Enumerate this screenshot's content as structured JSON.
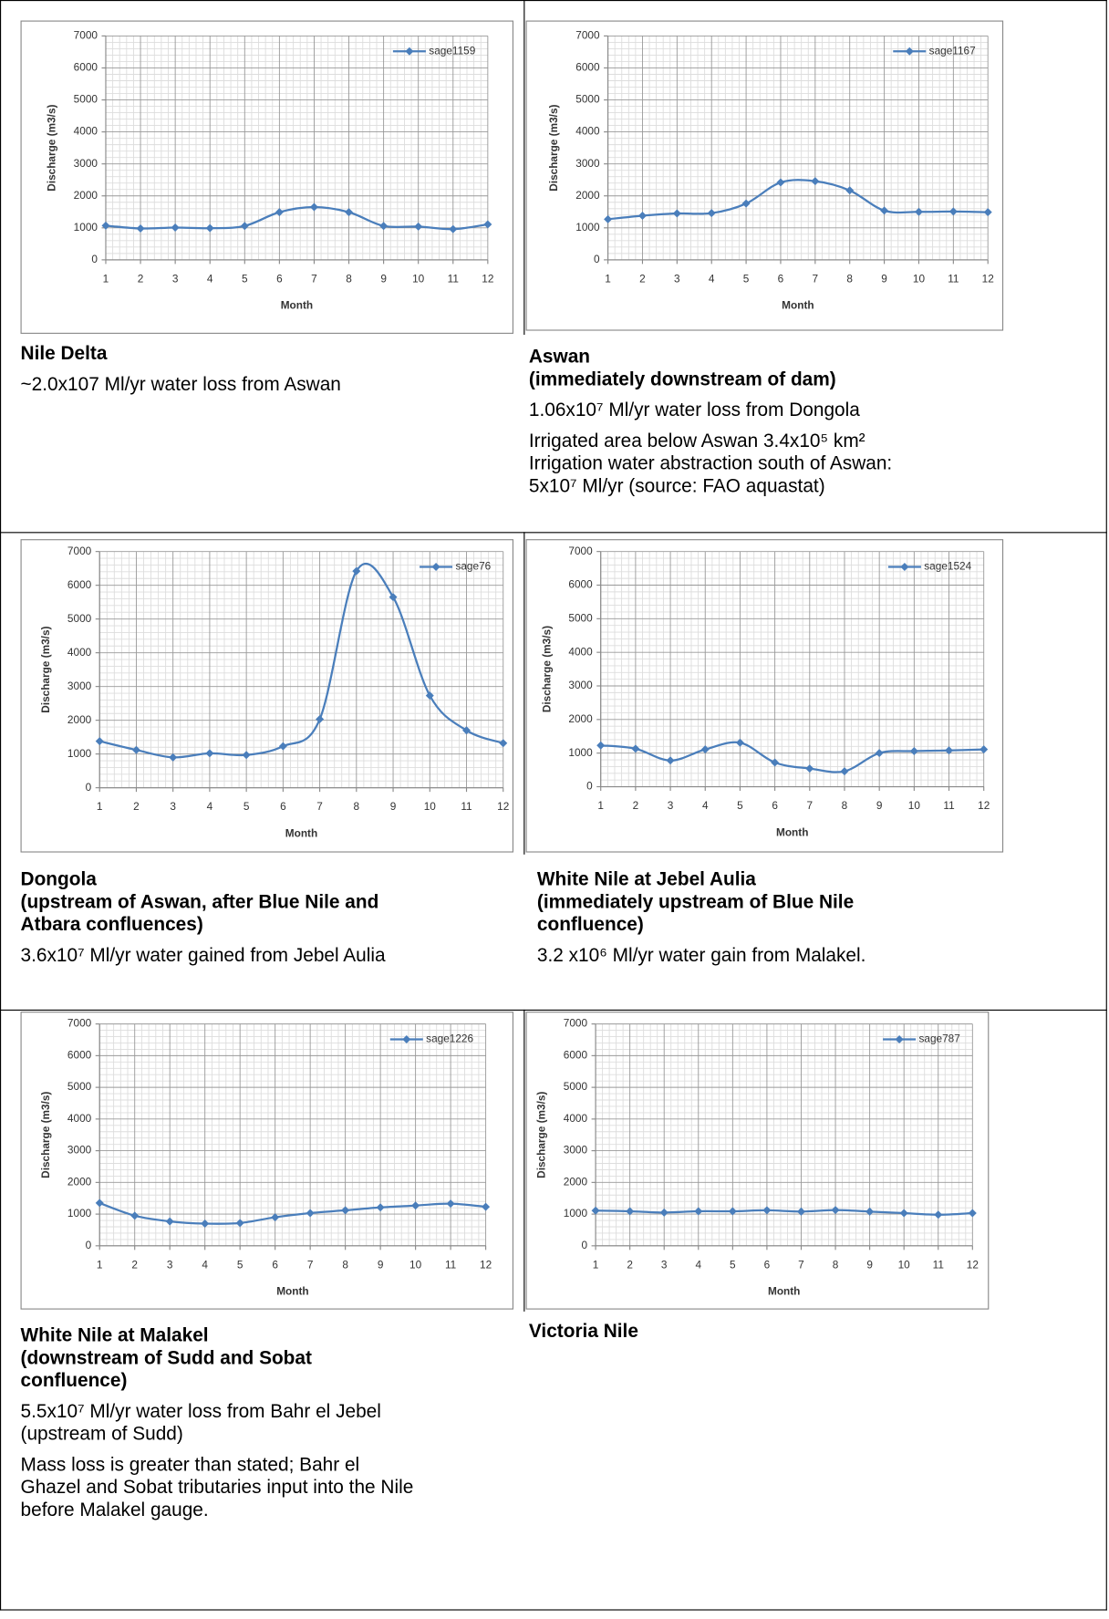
{
  "chart_data": [
    {
      "type": "line",
      "ylabel": "Discharge (m3/s)",
      "xlabel": "Month",
      "x": [
        1,
        2,
        3,
        4,
        5,
        6,
        7,
        8,
        9,
        10,
        11,
        12
      ],
      "xlim": [
        1,
        12
      ],
      "xticks": [
        1,
        2,
        3,
        4,
        5,
        6,
        7,
        8,
        9,
        10,
        11,
        12
      ],
      "ylim": [
        0,
        7000
      ],
      "yticks": [
        0,
        1000,
        2000,
        3000,
        4000,
        5000,
        6000,
        7000
      ],
      "grid": true,
      "minor_grid": true,
      "legend": "upper right",
      "smooth": true,
      "series": [
        {
          "name": "sage1159",
          "color": "#4a7ebb",
          "values": [
            1070,
            980,
            1010,
            990,
            1060,
            1490,
            1650,
            1490,
            1060,
            1040,
            960,
            1110
          ]
        }
      ]
    },
    {
      "type": "line",
      "ylabel": "Discharge (m3/s)",
      "xlabel": "Month",
      "x": [
        1,
        2,
        3,
        4,
        5,
        6,
        7,
        8,
        9,
        10,
        11,
        12
      ],
      "xlim": [
        1,
        12
      ],
      "xticks": [
        1,
        2,
        3,
        4,
        5,
        6,
        7,
        8,
        9,
        10,
        11,
        12
      ],
      "ylim": [
        0,
        7000
      ],
      "yticks": [
        0,
        1000,
        2000,
        3000,
        4000,
        5000,
        6000,
        7000
      ],
      "grid": true,
      "minor_grid": true,
      "legend": "upper right",
      "smooth": true,
      "series": [
        {
          "name": "sage1167",
          "color": "#4a7ebb",
          "values": [
            1270,
            1380,
            1450,
            1460,
            1760,
            2420,
            2460,
            2170,
            1540,
            1500,
            1510,
            1490
          ]
        }
      ]
    },
    {
      "type": "line",
      "ylabel": "Discharge (m3/s)",
      "xlabel": "Month",
      "x": [
        1,
        2,
        3,
        4,
        5,
        6,
        7,
        8,
        9,
        10,
        11,
        12
      ],
      "xlim": [
        1,
        12
      ],
      "xticks": [
        1,
        2,
        3,
        4,
        5,
        6,
        7,
        8,
        9,
        10,
        11,
        12
      ],
      "ylim": [
        0,
        7000
      ],
      "yticks": [
        0,
        1000,
        2000,
        3000,
        4000,
        5000,
        6000,
        7000
      ],
      "grid": true,
      "minor_grid": true,
      "legend": "upper right",
      "smooth": true,
      "series": [
        {
          "name": "sage76",
          "color": "#4a7ebb",
          "values": [
            1380,
            1120,
            900,
            1020,
            970,
            1230,
            2030,
            6420,
            5650,
            2730,
            1700,
            1320
          ]
        }
      ]
    },
    {
      "type": "line",
      "ylabel": "Discharge (m3/s)",
      "xlabel": "Month",
      "x": [
        1,
        2,
        3,
        4,
        5,
        6,
        7,
        8,
        9,
        10,
        11,
        12
      ],
      "xlim": [
        1,
        12
      ],
      "xticks": [
        1,
        2,
        3,
        4,
        5,
        6,
        7,
        8,
        9,
        10,
        11,
        12
      ],
      "ylim": [
        0,
        7000
      ],
      "yticks": [
        0,
        1000,
        2000,
        3000,
        4000,
        5000,
        6000,
        7000
      ],
      "grid": true,
      "minor_grid": true,
      "legend": "upper right",
      "smooth": true,
      "series": [
        {
          "name": "sage1524",
          "color": "#4a7ebb",
          "values": [
            1230,
            1130,
            780,
            1110,
            1310,
            720,
            540,
            460,
            1000,
            1060,
            1080,
            1110
          ]
        }
      ]
    },
    {
      "type": "line",
      "ylabel": "Discharge (m3/s)",
      "xlabel": "Month",
      "x": [
        1,
        2,
        3,
        4,
        5,
        6,
        7,
        8,
        9,
        10,
        11,
        12
      ],
      "xlim": [
        1,
        12
      ],
      "xticks": [
        1,
        2,
        3,
        4,
        5,
        6,
        7,
        8,
        9,
        10,
        11,
        12
      ],
      "ylim": [
        0,
        7000
      ],
      "yticks": [
        0,
        1000,
        2000,
        3000,
        4000,
        5000,
        6000,
        7000
      ],
      "grid": true,
      "minor_grid": true,
      "legend": "upper right",
      "smooth": true,
      "series": [
        {
          "name": "sage1226",
          "color": "#4a7ebb",
          "values": [
            1350,
            950,
            770,
            700,
            720,
            900,
            1030,
            1120,
            1210,
            1270,
            1330,
            1230
          ]
        }
      ]
    },
    {
      "type": "line",
      "ylabel": "Discharge (m3/s)",
      "xlabel": "Month",
      "x": [
        1,
        2,
        3,
        4,
        5,
        6,
        7,
        8,
        9,
        10,
        11,
        12
      ],
      "xlim": [
        1,
        12
      ],
      "xticks": [
        1,
        2,
        3,
        4,
        5,
        6,
        7,
        8,
        9,
        10,
        11,
        12
      ],
      "ylim": [
        0,
        7000
      ],
      "yticks": [
        0,
        1000,
        2000,
        3000,
        4000,
        5000,
        6000,
        7000
      ],
      "grid": true,
      "minor_grid": true,
      "legend": "upper right",
      "smooth": true,
      "series": [
        {
          "name": "sage787",
          "color": "#4a7ebb",
          "values": [
            1110,
            1090,
            1050,
            1090,
            1090,
            1120,
            1080,
            1130,
            1080,
            1030,
            980,
            1030
          ]
        }
      ]
    }
  ],
  "captions": [
    {
      "heading": [
        "Nile Delta"
      ],
      "text": [
        [
          "~2.0x107 Ml/yr water loss from Aswan"
        ]
      ]
    },
    {
      "heading": [
        "Aswan",
        "(immediately downstream of dam)"
      ],
      "text": [
        [
          "1.06x10⁷ Ml/yr water loss from Dongola"
        ],
        [
          "Irrigated area below Aswan 3.4x10⁵ km²",
          "Irrigation water abstraction south of Aswan:",
          "5x10⁷ Ml/yr (source: FAO aquastat)"
        ]
      ]
    },
    {
      "heading": [
        "Dongola",
        "(upstream of Aswan, after Blue Nile and",
        "Atbara confluences)"
      ],
      "text": [
        [
          "3.6x10⁷ Ml/yr water gained from Jebel Aulia"
        ]
      ]
    },
    {
      "heading": [
        "White Nile at Jebel Aulia",
        "(immediately upstream of Blue Nile",
        "confluence)"
      ],
      "text": [
        [
          "3.2 x10⁶ Ml/yr water gain from Malakel."
        ]
      ]
    },
    {
      "heading": [
        "White Nile at Malakel",
        "(downstream of Sudd and Sobat",
        "confluence)"
      ],
      "text": [
        [
          "5.5x10⁷ Ml/yr water loss from Bahr el Jebel",
          "(upstream of Sudd)"
        ],
        [
          "Mass loss is greater than stated; Bahr el",
          "Ghazel and Sobat tributaries input into the Nile",
          "before Malakel gauge."
        ]
      ]
    },
    {
      "heading": [
        "Victoria Nile"
      ],
      "text": []
    }
  ]
}
